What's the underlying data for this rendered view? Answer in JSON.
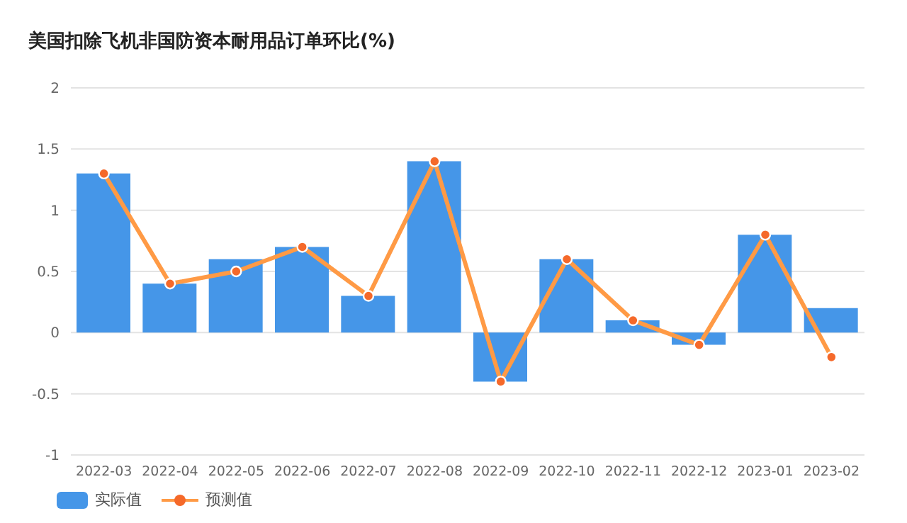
{
  "chart_data": {
    "type": "bar",
    "title": "美国扣除飞机非国防资本耐用品订单环比(%)",
    "categories": [
      "2022-03",
      "2022-04",
      "2022-05",
      "2022-06",
      "2022-07",
      "2022-08",
      "2022-09",
      "2022-10",
      "2022-11",
      "2022-12",
      "2023-01",
      "2023-02"
    ],
    "series": [
      {
        "name": "实际值",
        "color": "#4596e8",
        "values": [
          1.3,
          0.4,
          0.6,
          0.7,
          0.3,
          1.4,
          -0.4,
          0.6,
          0.1,
          -0.1,
          0.8,
          0.2
        ]
      },
      {
        "name": "预测值",
        "type": "line",
        "color": "#ff9a45",
        "values": [
          1.3,
          0.4,
          0.5,
          0.7,
          0.3,
          1.4,
          -0.4,
          0.6,
          0.1,
          -0.1,
          0.8,
          -0.2
        ]
      }
    ],
    "ylim": [
      -1,
      2
    ],
    "yticks": [
      -1,
      -0.5,
      0,
      0.5,
      1,
      1.5,
      2
    ],
    "grid": "y",
    "legend": "bottom left",
    "marker": "circle",
    "line_style": "solid"
  }
}
